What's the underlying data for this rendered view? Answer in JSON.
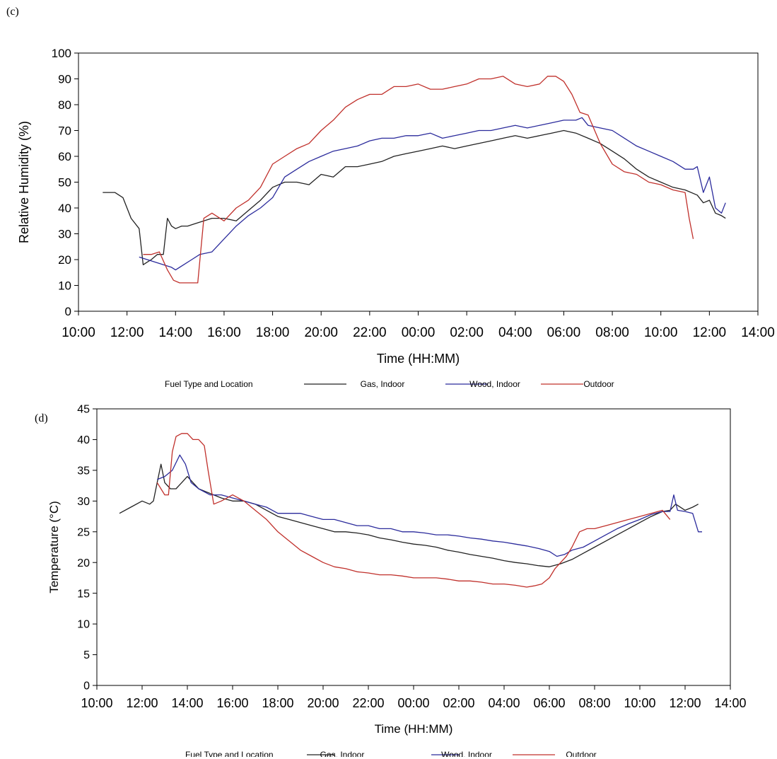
{
  "chart_data": [
    {
      "panel_label": "(c)",
      "type": "line",
      "xlabel": "Time (HH:MM)",
      "ylabel": "Relative Humidity (%)",
      "ylim": [
        0,
        100
      ],
      "yticks": [
        0,
        10,
        20,
        30,
        40,
        50,
        60,
        70,
        80,
        90,
        100
      ],
      "xlim": [
        "10:00",
        "14:00 (+1 day)"
      ],
      "xtick_labels": [
        "10:00",
        "12:00",
        "14:00",
        "16:00",
        "18:00",
        "20:00",
        "22:00",
        "00:00",
        "02:00",
        "04:00",
        "06:00",
        "08:00",
        "10:00",
        "12:00",
        "14:00"
      ],
      "grid": false,
      "legend": {
        "title": "Fuel Type and Location",
        "placement": "bottom",
        "entries": [
          {
            "label": "Gas, Indoor",
            "color": "#222222"
          },
          {
            "label": "Wood, Indoor",
            "color": "#2b2b9c"
          },
          {
            "label": "Outdoor",
            "color": "#c0302b"
          }
        ]
      },
      "series": [
        {
          "color": "#222222",
          "x": [
            "11:00",
            "11:30",
            "11:50",
            "12:10",
            "12:30",
            "12:40",
            "12:50",
            "13:00",
            "13:15",
            "13:30",
            "13:40",
            "13:50",
            "14:00",
            "14:15",
            "14:30",
            "14:50",
            "15:10",
            "15:30",
            "16:00",
            "16:30",
            "17:00",
            "17:30",
            "18:00",
            "18:30",
            "19:00",
            "19:30",
            "20:00",
            "20:30",
            "21:00",
            "21:30",
            "22:00",
            "22:30",
            "23:00",
            "23:30",
            "00:00",
            "00:30",
            "01:00",
            "01:30",
            "02:00",
            "02:30",
            "03:00",
            "03:30",
            "04:00",
            "04:30",
            "05:00",
            "05:30",
            "06:00",
            "06:30",
            "07:00",
            "07:30",
            "08:00",
            "08:30",
            "09:00",
            "09:30",
            "10:00",
            "10:30",
            "11:00",
            "11:30",
            "11:45",
            "12:00",
            "12:15",
            "12:30",
            "12:40"
          ],
          "y": [
            46,
            46,
            44,
            36,
            32,
            18,
            19,
            20,
            22,
            22,
            36,
            33,
            32,
            33,
            33,
            34,
            35,
            36,
            36,
            35,
            39,
            43,
            48,
            50,
            50,
            49,
            53,
            52,
            56,
            56,
            57,
            58,
            60,
            61,
            62,
            63,
            64,
            63,
            64,
            65,
            66,
            67,
            68,
            67,
            68,
            69,
            70,
            69,
            67,
            65,
            62,
            59,
            55,
            52,
            50,
            48,
            47,
            45,
            42,
            43,
            38,
            37,
            36
          ]
        },
        {
          "color": "#2b2b9c",
          "x": [
            "12:30",
            "12:50",
            "13:10",
            "13:30",
            "13:50",
            "14:00",
            "14:20",
            "14:40",
            "15:00",
            "15:30",
            "16:00",
            "16:30",
            "17:00",
            "17:30",
            "18:00",
            "18:30",
            "19:00",
            "19:30",
            "20:00",
            "20:30",
            "21:00",
            "21:30",
            "22:00",
            "22:30",
            "23:00",
            "23:30",
            "00:00",
            "00:30",
            "01:00",
            "01:30",
            "02:00",
            "02:30",
            "03:00",
            "03:30",
            "04:00",
            "04:30",
            "05:00",
            "05:30",
            "06:00",
            "06:30",
            "06:45",
            "07:00",
            "07:30",
            "08:00",
            "08:30",
            "09:00",
            "09:30",
            "10:00",
            "10:30",
            "11:00",
            "11:20",
            "11:30",
            "11:45",
            "12:00",
            "12:15",
            "12:30",
            "12:40"
          ],
          "y": [
            21,
            20,
            19,
            18,
            17,
            16,
            18,
            20,
            22,
            23,
            28,
            33,
            37,
            40,
            44,
            52,
            55,
            58,
            60,
            62,
            63,
            64,
            66,
            67,
            67,
            68,
            68,
            69,
            67,
            68,
            69,
            70,
            70,
            71,
            72,
            71,
            72,
            73,
            74,
            74,
            75,
            72,
            71,
            70,
            67,
            64,
            62,
            60,
            58,
            55,
            55,
            56,
            46,
            52,
            40,
            38,
            42
          ]
        },
        {
          "color": "#c0302b",
          "x": [
            "12:40",
            "13:00",
            "13:20",
            "13:40",
            "13:55",
            "14:10",
            "14:30",
            "14:45",
            "14:55",
            "15:10",
            "15:30",
            "16:00",
            "16:30",
            "17:00",
            "17:30",
            "18:00",
            "18:30",
            "19:00",
            "19:30",
            "20:00",
            "20:30",
            "21:00",
            "21:30",
            "22:00",
            "22:30",
            "23:00",
            "23:30",
            "00:00",
            "00:30",
            "01:00",
            "01:30",
            "02:00",
            "02:30",
            "03:00",
            "03:30",
            "04:00",
            "04:30",
            "05:00",
            "05:20",
            "05:40",
            "06:00",
            "06:20",
            "06:40",
            "07:00",
            "07:30",
            "08:00",
            "08:30",
            "09:00",
            "09:30",
            "10:00",
            "10:30",
            "11:00",
            "11:10",
            "11:20"
          ],
          "y": [
            22,
            22,
            23,
            16,
            12,
            11,
            11,
            11,
            11,
            36,
            38,
            35,
            40,
            43,
            48,
            57,
            60,
            63,
            65,
            70,
            74,
            79,
            82,
            84,
            84,
            87,
            87,
            88,
            86,
            86,
            87,
            88,
            90,
            90,
            91,
            88,
            87,
            88,
            91,
            91,
            89,
            84,
            77,
            76,
            65,
            57,
            54,
            53,
            50,
            49,
            47,
            46,
            36,
            28
          ]
        }
      ]
    },
    {
      "panel_label": "(d)",
      "type": "line",
      "xlabel": "Time (HH:MM)",
      "ylabel": "Temperature (°C)",
      "ylim": [
        0,
        45
      ],
      "yticks": [
        0,
        5,
        10,
        15,
        20,
        25,
        30,
        35,
        40,
        45
      ],
      "xlim": [
        "10:00",
        "14:00 (+1 day)"
      ],
      "xtick_labels": [
        "10:00",
        "12:00",
        "14:00",
        "16:00",
        "18:00",
        "20:00",
        "22:00",
        "00:00",
        "02:00",
        "04:00",
        "06:00",
        "08:00",
        "10:00",
        "12:00",
        "14:00"
      ],
      "grid": false,
      "legend": {
        "title": "Fuel Type and Location",
        "placement": "bottom",
        "entries": [
          {
            "label": "Gas, Indoor",
            "color": "#222222"
          },
          {
            "label": "Wood, Indoor",
            "color": "#2b2b9c"
          },
          {
            "label": "Outdoor",
            "color": "#c0302b"
          }
        ]
      },
      "series": [
        {
          "color": "#222222",
          "x": [
            "11:00",
            "11:30",
            "12:00",
            "12:20",
            "12:30",
            "12:40",
            "12:50",
            "13:00",
            "13:15",
            "13:30",
            "13:45",
            "14:00",
            "14:15",
            "14:30",
            "14:50",
            "15:10",
            "15:30",
            "16:00",
            "16:30",
            "17:00",
            "17:30",
            "18:00",
            "18:30",
            "19:00",
            "19:30",
            "20:00",
            "20:30",
            "21:00",
            "21:30",
            "22:00",
            "22:30",
            "23:00",
            "23:30",
            "00:00",
            "00:30",
            "01:00",
            "01:30",
            "02:00",
            "02:30",
            "03:00",
            "03:30",
            "04:00",
            "04:30",
            "05:00",
            "05:30",
            "06:00",
            "06:30",
            "07:00",
            "07:30",
            "08:00",
            "08:30",
            "09:00",
            "09:30",
            "10:00",
            "10:30",
            "11:00",
            "11:20",
            "11:35",
            "12:00",
            "12:20",
            "12:35"
          ],
          "y": [
            28,
            29,
            30,
            29.5,
            30,
            33,
            36,
            33,
            32,
            32,
            33,
            34,
            33,
            32,
            31.5,
            31,
            30.5,
            30,
            30,
            29.5,
            28.5,
            27.5,
            27,
            26.5,
            26,
            25.5,
            25,
            25,
            24.8,
            24.5,
            24,
            23.7,
            23.3,
            23,
            22.8,
            22.5,
            22,
            21.7,
            21.3,
            21,
            20.7,
            20.3,
            20,
            19.8,
            19.5,
            19.3,
            19.8,
            20.5,
            21.5,
            22.5,
            23.5,
            24.5,
            25.5,
            26.5,
            27.5,
            28.3,
            28.5,
            29.5,
            28.5,
            29,
            29.5
          ]
        },
        {
          "color": "#2b2b9c",
          "x": [
            "12:40",
            "13:00",
            "13:20",
            "13:40",
            "13:55",
            "14:10",
            "14:30",
            "15:00",
            "15:30",
            "16:00",
            "16:30",
            "17:00",
            "17:30",
            "18:00",
            "18:30",
            "19:00",
            "19:30",
            "20:00",
            "20:30",
            "21:00",
            "21:30",
            "22:00",
            "22:30",
            "23:00",
            "23:30",
            "00:00",
            "00:30",
            "01:00",
            "01:30",
            "02:00",
            "02:30",
            "03:00",
            "03:30",
            "04:00",
            "04:30",
            "05:00",
            "05:30",
            "06:00",
            "06:20",
            "06:40",
            "07:00",
            "07:30",
            "08:00",
            "08:30",
            "09:00",
            "09:30",
            "10:00",
            "10:30",
            "11:00",
            "11:20",
            "11:30",
            "11:40",
            "12:00",
            "12:20",
            "12:35",
            "12:45"
          ],
          "y": [
            33.5,
            34,
            35,
            37.5,
            36,
            33,
            32,
            31,
            31,
            30.5,
            30,
            29.5,
            29,
            28,
            28,
            28,
            27.5,
            27,
            27,
            26.5,
            26,
            26,
            25.5,
            25.5,
            25,
            25,
            24.8,
            24.5,
            24.5,
            24.3,
            24,
            23.8,
            23.5,
            23.3,
            23,
            22.7,
            22.3,
            21.8,
            21,
            21.3,
            22,
            22.5,
            23.5,
            24.5,
            25.5,
            26.3,
            27,
            27.8,
            28.3,
            28.3,
            31,
            28.5,
            28.3,
            28,
            25,
            25
          ]
        },
        {
          "color": "#c0302b",
          "x": [
            "12:40",
            "13:00",
            "13:10",
            "13:20",
            "13:30",
            "13:45",
            "14:00",
            "14:15",
            "14:30",
            "14:45",
            "14:55",
            "15:10",
            "15:30",
            "16:00",
            "16:30",
            "17:00",
            "17:30",
            "18:00",
            "18:30",
            "19:00",
            "19:30",
            "20:00",
            "20:30",
            "21:00",
            "21:30",
            "22:00",
            "22:30",
            "23:00",
            "23:30",
            "00:00",
            "00:30",
            "01:00",
            "01:30",
            "02:00",
            "02:30",
            "03:00",
            "03:30",
            "04:00",
            "04:30",
            "05:00",
            "05:20",
            "05:40",
            "06:00",
            "06:15",
            "06:30",
            "06:45",
            "07:00",
            "07:20",
            "07:40",
            "08:00",
            "08:30",
            "09:00",
            "09:30",
            "10:00",
            "10:30",
            "11:00",
            "11:20"
          ],
          "y": [
            33,
            31,
            31,
            38,
            40.5,
            41,
            41,
            40,
            40,
            39,
            35,
            29.5,
            30,
            31,
            30,
            28.5,
            27,
            25,
            23.5,
            22,
            21,
            20,
            19.3,
            19,
            18.5,
            18.3,
            18,
            18,
            17.8,
            17.5,
            17.5,
            17.5,
            17.3,
            17,
            17,
            16.8,
            16.5,
            16.5,
            16.3,
            16,
            16.2,
            16.5,
            17.5,
            19,
            20,
            21,
            22.5,
            25,
            25.5,
            25.5,
            26,
            26.5,
            27,
            27.5,
            28,
            28.5,
            27
          ]
        }
      ]
    }
  ]
}
